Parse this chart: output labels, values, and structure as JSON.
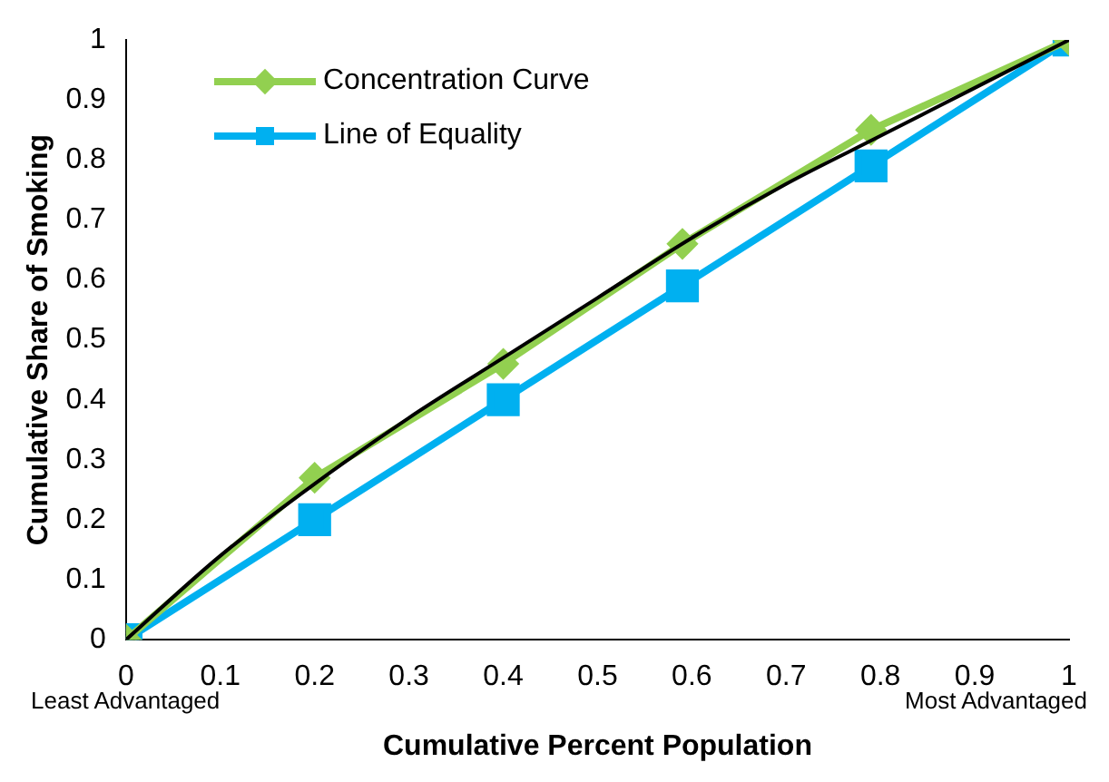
{
  "chart_data": {
    "type": "line",
    "xlabel": "Cumulative Percent Population",
    "ylabel": "Cumulative Share of Smoking",
    "xlim": [
      0,
      1
    ],
    "xticks": [
      0,
      0.1,
      0.2,
      0.3,
      0.4,
      0.5,
      0.6,
      0.7,
      0.8,
      0.9,
      1
    ],
    "ylim": [
      0,
      1
    ],
    "yticks": [
      0,
      0.1,
      0.2,
      0.3,
      0.4,
      0.5,
      0.6,
      0.7,
      0.8,
      0.9,
      1
    ],
    "grid": false,
    "legend": "top left",
    "annotations": [
      "Least Advantaged",
      "Most Advantaged"
    ],
    "series": [
      {
        "name": "Concentration Curve",
        "color": "#92d050",
        "marker": "diamond",
        "x": [
          0,
          0.2,
          0.4,
          0.59,
          0.79,
          1
        ],
        "values": [
          0,
          0.27,
          0.46,
          0.66,
          0.85,
          1
        ]
      },
      {
        "name": "Line of Equality",
        "color": "#00b0f0",
        "marker": "square",
        "x": [
          0,
          0.2,
          0.4,
          0.59,
          0.79,
          1
        ],
        "values": [
          0,
          0.2,
          0.4,
          0.59,
          0.79,
          1
        ]
      },
      {
        "type": "line",
        "color": "#000000",
        "marker": "none",
        "x": [
          0,
          0.1,
          0.2,
          0.3,
          0.4,
          0.5,
          0.6,
          0.7,
          0.8,
          0.9,
          1
        ],
        "values": [
          0,
          0.14,
          0.26,
          0.37,
          0.47,
          0.57,
          0.67,
          0.76,
          0.84,
          0.92,
          1
        ]
      }
    ]
  }
}
